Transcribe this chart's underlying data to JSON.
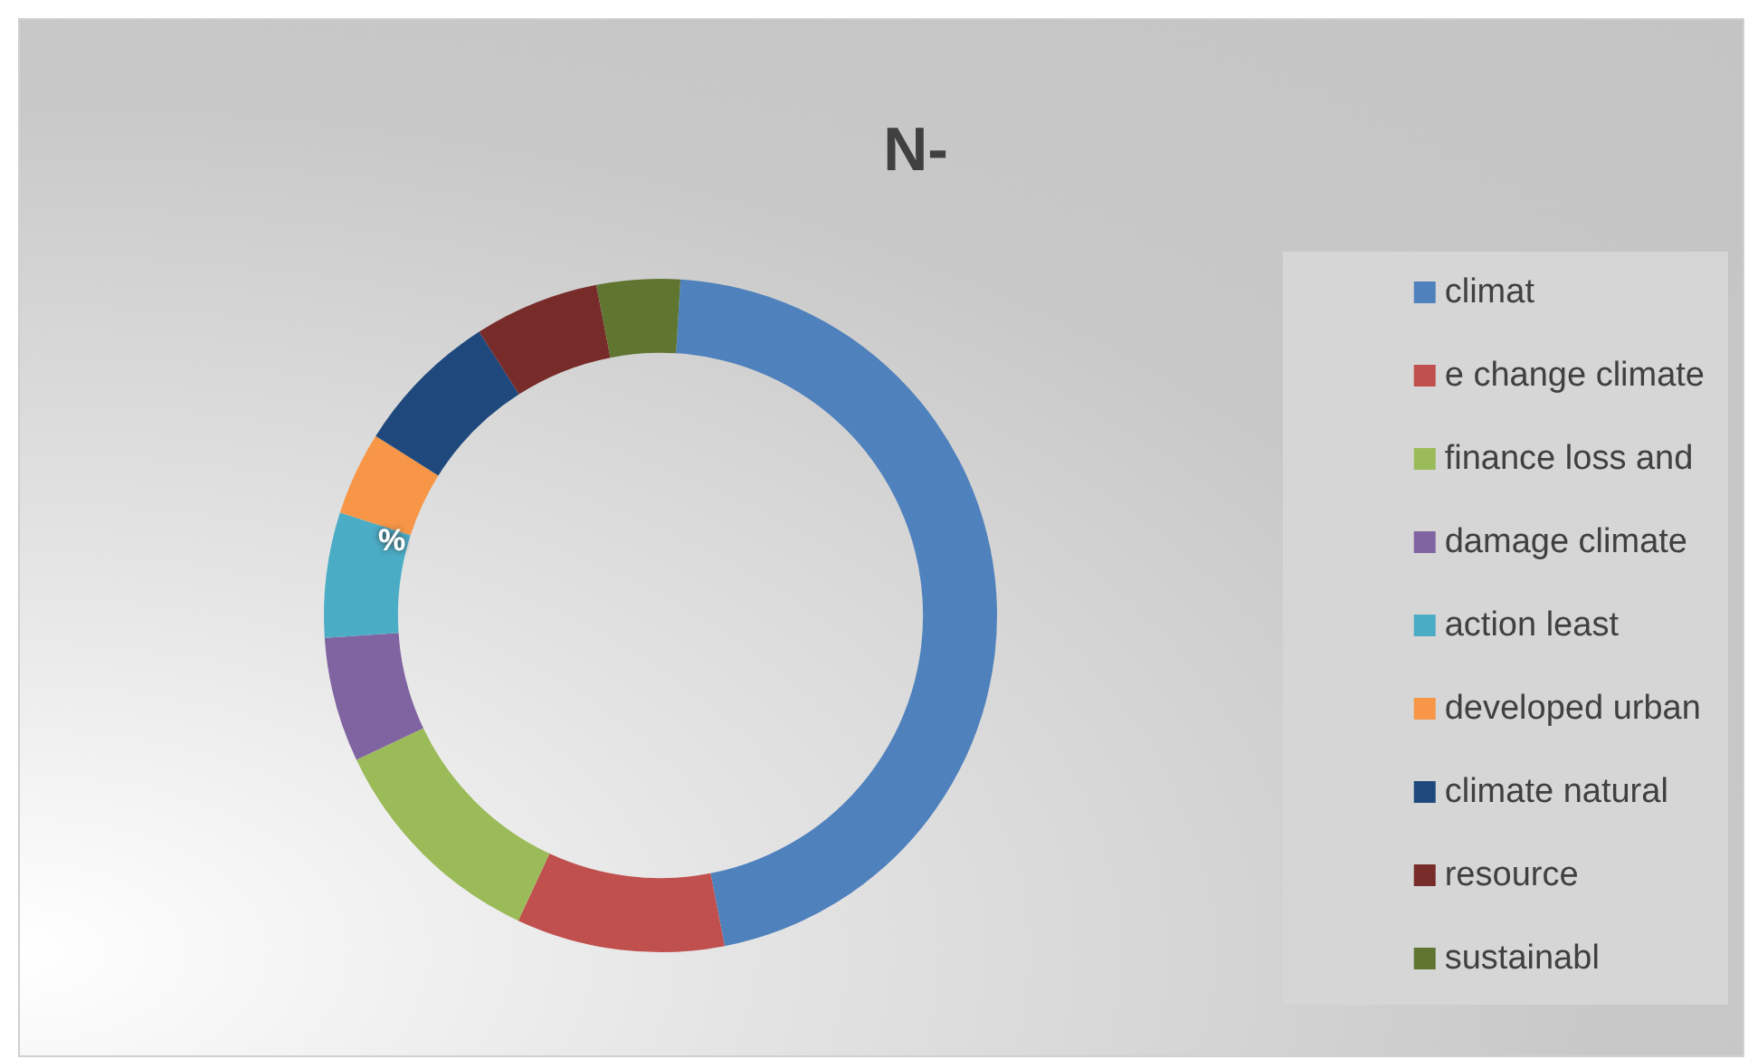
{
  "chart_data": {
    "type": "donut",
    "title": "N-",
    "categories": [
      "climat",
      "e change climate",
      "finance loss and",
      "damage climate",
      "action least",
      "developed urban",
      "climate natural",
      "resource",
      "sustainabl"
    ],
    "values": [
      46,
      10,
      11,
      6,
      6,
      4,
      7,
      6,
      4
    ],
    "colors": [
      "#4f81bd",
      "#c0504d",
      "#9bbb59",
      "#8064a2",
      "#4bacc6",
      "#f79646",
      "#1f497d",
      "#772c2a",
      "#5f7530"
    ],
    "legend": "right",
    "annotations": [
      "%"
    ]
  }
}
